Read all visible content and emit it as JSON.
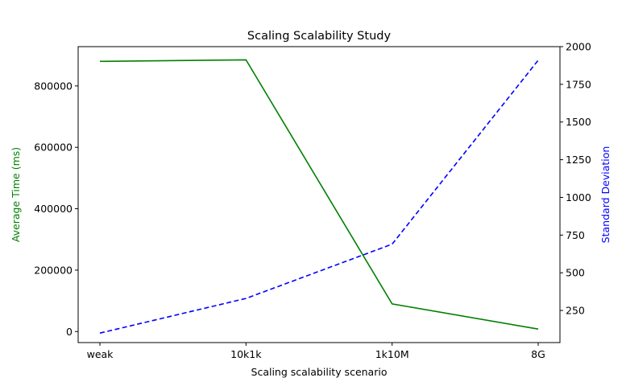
{
  "chart_data": {
    "type": "line",
    "title": "Scaling Scalability Study",
    "xlabel": "Scaling scalability scenario",
    "ylabel_left": "Average Time (ms)",
    "ylabel_right": "Standard Deviation",
    "categories": [
      "weak",
      "10k1k",
      "1k10M",
      "8G"
    ],
    "series": [
      {
        "axis": "left",
        "color": "#008000",
        "linestyle": "solid",
        "values": [
          880000,
          885000,
          90000,
          8000
        ]
      },
      {
        "axis": "right",
        "color": "#0000ff",
        "linestyle": "dashed",
        "values": [
          100,
          330,
          690,
          1910
        ]
      }
    ],
    "ylim_left": [
      -36000,
      928000
    ],
    "yticks_left": [
      0,
      200000,
      400000,
      600000,
      800000
    ],
    "ylim_right": [
      37,
      2000
    ],
    "yticks_right": [
      250,
      500,
      750,
      1000,
      1250,
      1500,
      1750,
      2000
    ],
    "grid": false,
    "legend": "none"
  }
}
